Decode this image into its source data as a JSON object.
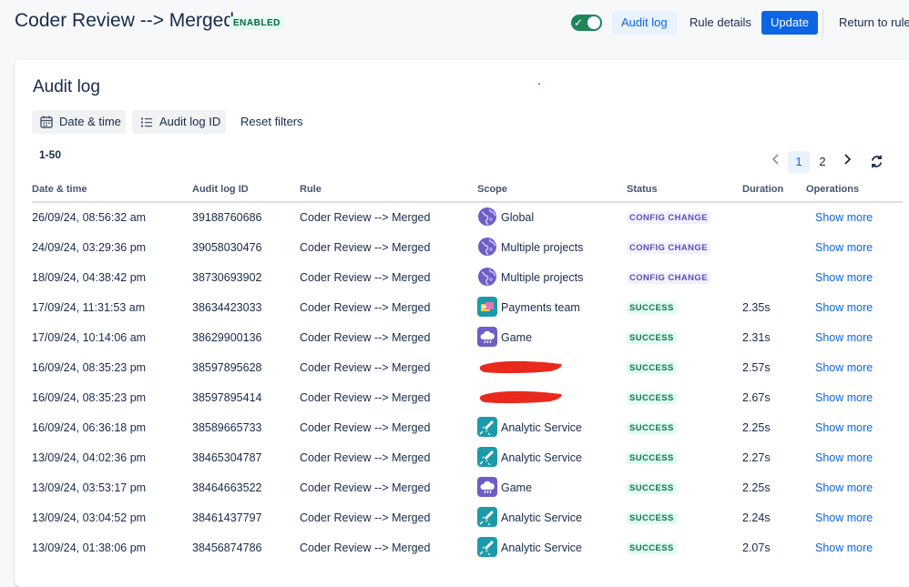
{
  "header": {
    "title": "Coder Review --> Merged",
    "badge": "ENABLED",
    "audit_log_label": "Audit log",
    "rule_details_label": "Rule details",
    "update_label": "Update",
    "return_label": "Return to rules"
  },
  "panel": {
    "title": "Audit log",
    "filters": {
      "date_label": "Date & time",
      "id_label": "Audit log ID",
      "reset_label": "Reset filters"
    },
    "range": "1-50",
    "pages": [
      "1",
      "2"
    ],
    "current_page": "1",
    "columns": [
      "Date & time",
      "Audit log ID",
      "Rule",
      "Scope",
      "Status",
      "Duration",
      "Operations"
    ],
    "rows": [
      {
        "date": "26/09/24, 08:56:32 am",
        "id": "39188760686",
        "rule": "Coder Review --> Merged",
        "scope": "Global",
        "scope_icon": "globe-icon",
        "status": "CONFIG CHANGE",
        "duration": "",
        "op": "Show more"
      },
      {
        "date": "24/09/24, 03:29:36 pm",
        "id": "39058030476",
        "rule": "Coder Review --> Merged",
        "scope": "Multiple projects",
        "scope_icon": "globe-icon",
        "status": "CONFIG CHANGE",
        "duration": "",
        "op": "Show more"
      },
      {
        "date": "18/09/24, 04:38:42 pm",
        "id": "38730693902",
        "rule": "Coder Review --> Merged",
        "scope": "Multiple projects",
        "scope_icon": "globe-icon",
        "status": "CONFIG CHANGE",
        "duration": "",
        "op": "Show more"
      },
      {
        "date": "17/09/24, 11:31:53 am",
        "id": "38634423033",
        "rule": "Coder Review --> Merged",
        "scope": "Payments team",
        "scope_icon": "payments-project-icon",
        "status": "SUCCESS",
        "duration": "2.35s",
        "op": "Show more"
      },
      {
        "date": "17/09/24, 10:14:06 am",
        "id": "38629900136",
        "rule": "Coder Review --> Merged",
        "scope": "Game",
        "scope_icon": "cloud-project-icon",
        "status": "SUCCESS",
        "duration": "2.31s",
        "op": "Show more"
      },
      {
        "date": "16/09/24, 08:35:23 pm",
        "id": "38597895628",
        "rule": "Coder Review --> Merged",
        "scope": "",
        "scope_icon": "redacted",
        "status": "SUCCESS",
        "duration": "2.57s",
        "op": "Show more"
      },
      {
        "date": "16/09/24, 08:35:23 pm",
        "id": "38597895414",
        "rule": "Coder Review --> Merged",
        "scope": "",
        "scope_icon": "redacted",
        "status": "SUCCESS",
        "duration": "2.67s",
        "op": "Show more"
      },
      {
        "date": "16/09/24, 06:36:18 pm",
        "id": "38589665733",
        "rule": "Coder Review --> Merged",
        "scope": "Analytic Service",
        "scope_icon": "rocket-project-icon",
        "status": "SUCCESS",
        "duration": "2.25s",
        "op": "Show more"
      },
      {
        "date": "13/09/24, 04:02:36 pm",
        "id": "38465304787",
        "rule": "Coder Review --> Merged",
        "scope": "Analytic Service",
        "scope_icon": "rocket-project-icon",
        "status": "SUCCESS",
        "duration": "2.27s",
        "op": "Show more"
      },
      {
        "date": "13/09/24, 03:53:17 pm",
        "id": "38464663522",
        "rule": "Coder Review --> Merged",
        "scope": "Game",
        "scope_icon": "cloud-project-icon",
        "status": "SUCCESS",
        "duration": "2.25s",
        "op": "Show more"
      },
      {
        "date": "13/09/24, 03:04:52 pm",
        "id": "38461437797",
        "rule": "Coder Review --> Merged",
        "scope": "Analytic Service",
        "scope_icon": "rocket-project-icon",
        "status": "SUCCESS",
        "duration": "2.24s",
        "op": "Show more"
      },
      {
        "date": "13/09/24, 01:38:06 pm",
        "id": "38456874786",
        "rule": "Coder Review --> Merged",
        "scope": "Analytic Service",
        "scope_icon": "rocket-project-icon",
        "status": "SUCCESS",
        "duration": "2.07s",
        "op": "Show more"
      }
    ]
  },
  "colors": {
    "accent": "#0c66e4",
    "toggle_on": "#1f845a",
    "config_change_text": "#5e4db2",
    "success_text": "#216e4e",
    "redaction": "#e8291c"
  }
}
